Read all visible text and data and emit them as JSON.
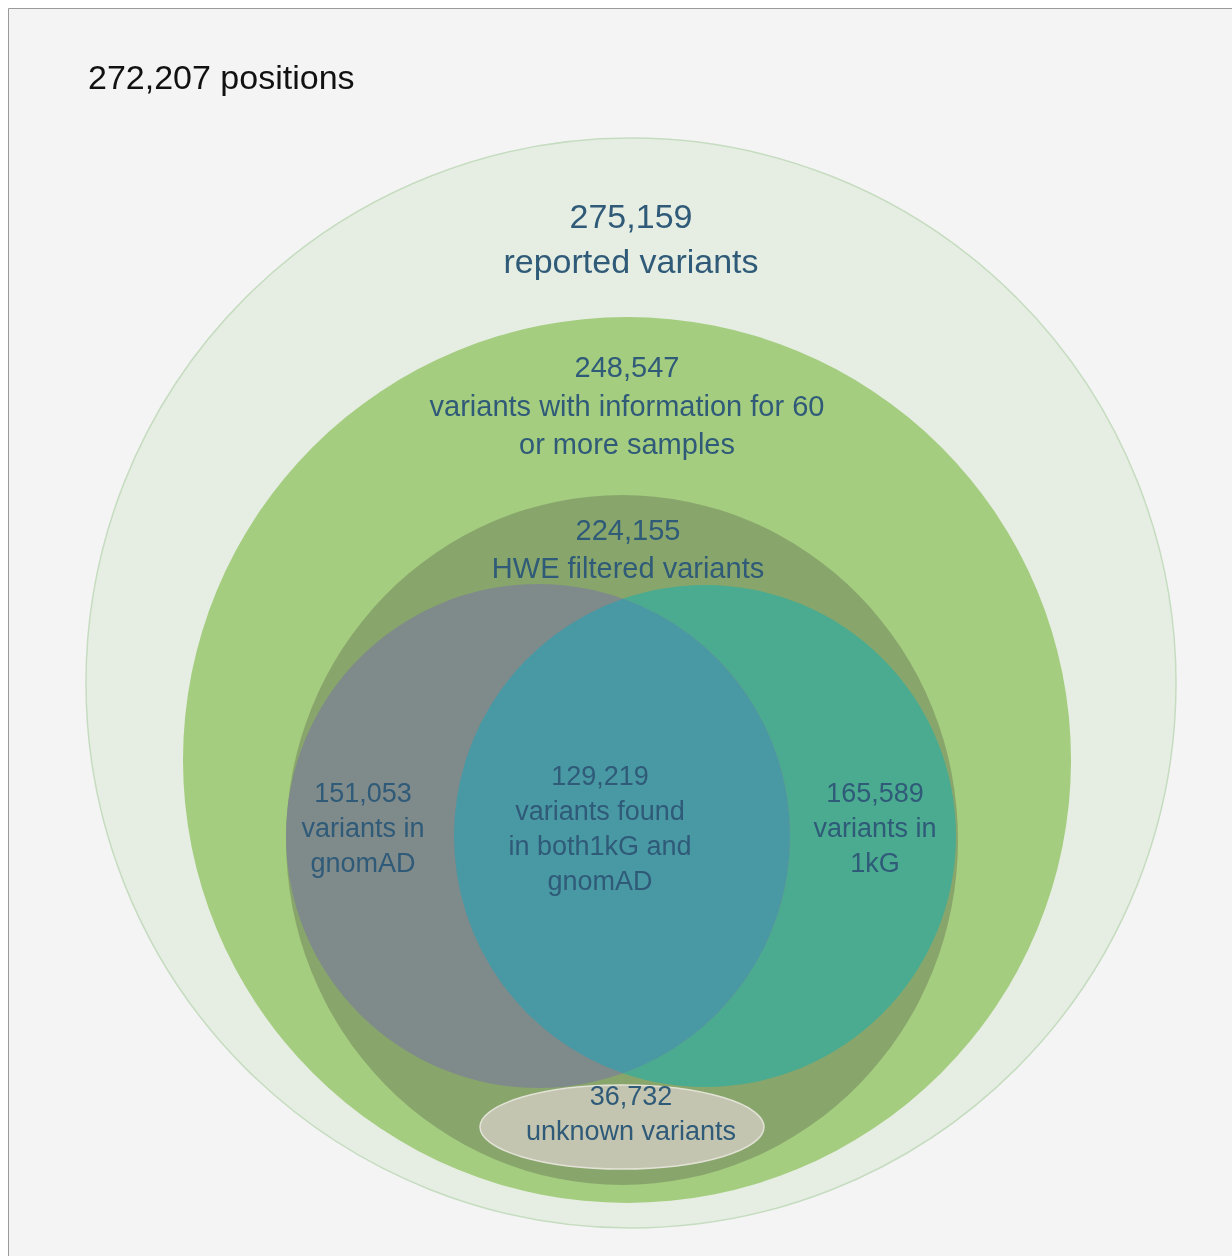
{
  "chart_data": {
    "type": "other",
    "title": "272,207 positions",
    "categories": [
      "reported variants",
      "variants with information for 60 or more samples",
      "HWE filtered variants",
      "variants in gnomAD",
      "variants found in both1kG and gnomAD",
      "variants in 1kG",
      "unknown variants"
    ],
    "values": [
      275159,
      248547,
      224155,
      151053,
      129219,
      165589,
      36732
    ],
    "value_labels": [
      "275,159",
      "248,547",
      "224,155",
      "151,053",
      "129,219",
      "165,589",
      "36,732"
    ],
    "colors": [
      "#e6eee3",
      "#a5cd80",
      "#88a66b",
      "#7f8a8b",
      "#4999a5",
      "#4aab90",
      "#c3c5b0"
    ]
  }
}
